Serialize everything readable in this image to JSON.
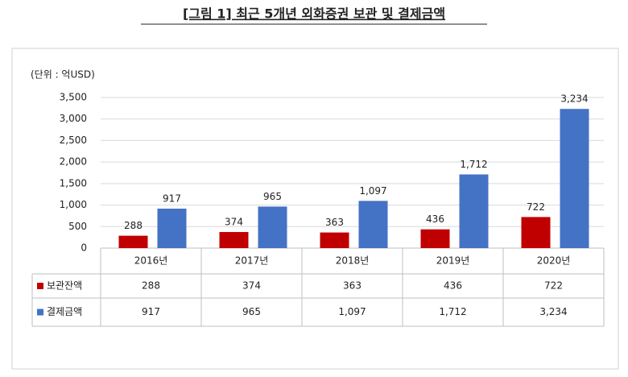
{
  "chart_data": {
    "type": "bar",
    "title": "[그림 1] 최근 5개년 외화증권 보관 및 결제금액",
    "unit_label": "(단위 : 억USD)",
    "categories": [
      "2016년",
      "2017년",
      "2018년",
      "2019년",
      "2020년"
    ],
    "series": [
      {
        "name": "보관잔액",
        "color": "#c00000",
        "values": [
          288,
          374,
          363,
          436,
          722
        ]
      },
      {
        "name": "결제금액",
        "color": "#4472c4",
        "values": [
          917,
          965,
          1097,
          1712,
          3234
        ],
        "value_labels": [
          "917",
          "965",
          "1,097",
          "1,712",
          "3,234"
        ]
      }
    ],
    "ylim": [
      0,
      3500
    ],
    "yticks": [
      0,
      500,
      {
        "value": 1000,
        "label": "1,000"
      },
      {
        "value": 1500,
        "label": "1,500"
      },
      {
        "value": 2000,
        "label": "2,000"
      },
      {
        "value": 2500,
        "label": "2,500"
      },
      {
        "value": 3000,
        "label": "3,000"
      },
      {
        "value": 3500,
        "label": "3,500"
      }
    ],
    "grid": true
  }
}
